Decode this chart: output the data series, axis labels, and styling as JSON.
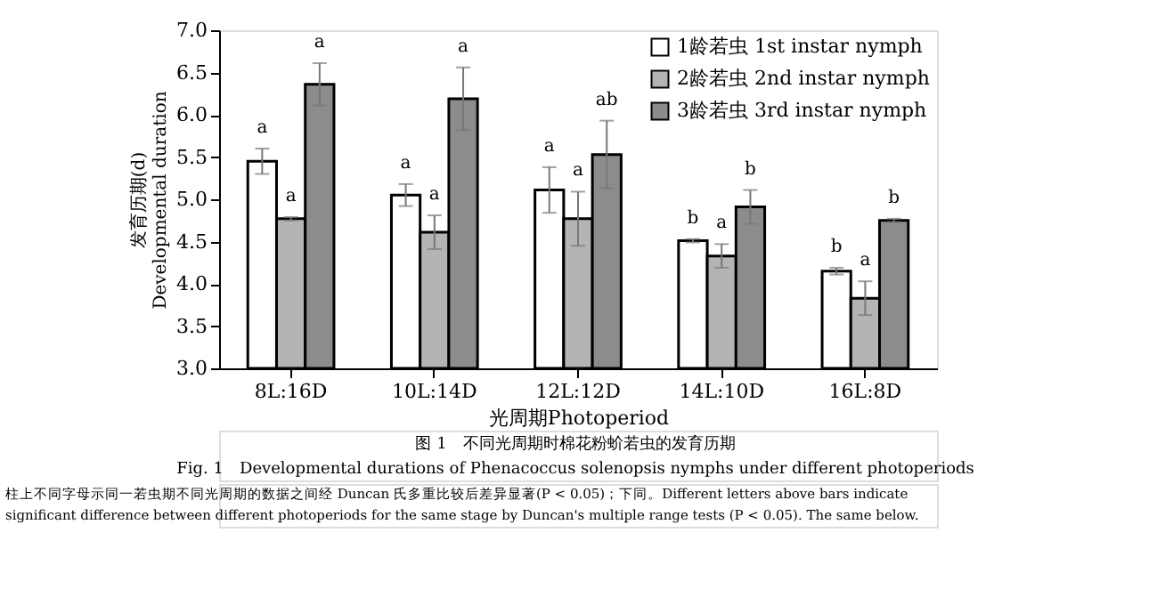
{
  "chart_data": {
    "type": "bar",
    "title": "图 1　不同光周期时棉花粉蚧若虫的发育历期",
    "subtitle": "Fig. 1　Developmental durations of Phenacoccus solenopsis nymphs under different photoperiods",
    "xlabel": "光周期Photoperiod",
    "ylabel": "发育历期(d)\nDevelopmental duration",
    "categories": [
      "8L:16D",
      "10L:14D",
      "12L:12D",
      "14L:10D",
      "16L:8D"
    ],
    "series": [
      {
        "name": "1龄若虫 1st instar nymph",
        "color": "#ffffff",
        "values": [
          5.45,
          5.05,
          5.11,
          4.51,
          4.15
        ],
        "errors": [
          0.15,
          0.13,
          0.27,
          0.02,
          0.04
        ]
      },
      {
        "name": "2龄若虫 2nd instar nymph",
        "color": "#b4b4b4",
        "values": [
          4.77,
          4.61,
          4.77,
          4.33,
          3.83
        ],
        "errors": [
          0.02,
          0.2,
          0.32,
          0.14,
          0.2
        ]
      },
      {
        "name": "3龄若虫 3rd instar nymph",
        "color": "#8c8c8c",
        "values": [
          6.36,
          6.19,
          5.53,
          4.91,
          4.75
        ],
        "errors": [
          0.25,
          0.37,
          0.4,
          0.2,
          0.02
        ]
      }
    ],
    "ylim": [
      3.0,
      7.0
    ],
    "yticks": [
      {
        "value": 3,
        "label": "3.0"
      },
      3.5,
      {
        "value": 4,
        "label": "4.0"
      },
      4.5,
      {
        "value": 5,
        "label": "5.0"
      },
      5.5,
      {
        "value": 6,
        "label": "6.0"
      },
      6.5,
      {
        "value": 7,
        "label": "7.0"
      }
    ],
    "grid": false,
    "legend": "top right",
    "annotations": [
      "a",
      "a",
      "a",
      "a",
      "a",
      "a",
      "a",
      "a",
      "ab",
      "b",
      "a",
      "b",
      "b",
      "a",
      "b",
      "柱上不同字母示同一若虫期不同光周期的数据之间经 Duncan 氏多重比较后差异显著(P < 0.05)；下同。Different letters above bars indicate",
      "significant difference between different photoperiods for the same stage by Duncan's multiple range tests (P < 0.05). The same below."
    ]
  }
}
